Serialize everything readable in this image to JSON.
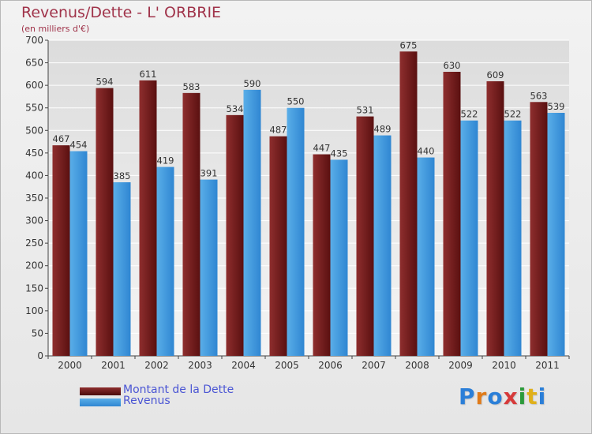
{
  "title": "Revenus/Dette - L' ORBRIE",
  "subtitle": "(en milliers d'€)",
  "logo_text": "Proxiti",
  "colors": {
    "dette": "#6b1b1b",
    "revenus": "#3c94dc",
    "title": "#a0334a",
    "legend_text": "#4a55d4"
  },
  "chart_data": {
    "type": "bar",
    "categories": [
      "2000",
      "2001",
      "2002",
      "2003",
      "2004",
      "2005",
      "2006",
      "2007",
      "2008",
      "2009",
      "2010",
      "2011"
    ],
    "series": [
      {
        "name": "Montant de la Dette",
        "values": [
          467,
          594,
          611,
          583,
          534,
          487,
          447,
          531,
          675,
          630,
          609,
          563
        ]
      },
      {
        "name": "Revenus",
        "values": [
          454,
          385,
          419,
          391,
          590,
          550,
          435,
          489,
          440,
          522,
          522,
          539
        ]
      }
    ],
    "ylim": [
      0,
      700
    ],
    "yticks": [
      0,
      50,
      100,
      150,
      200,
      250,
      300,
      350,
      400,
      450,
      500,
      550,
      600,
      650,
      700
    ],
    "grid": true,
    "legend_position": "bottom-left"
  }
}
